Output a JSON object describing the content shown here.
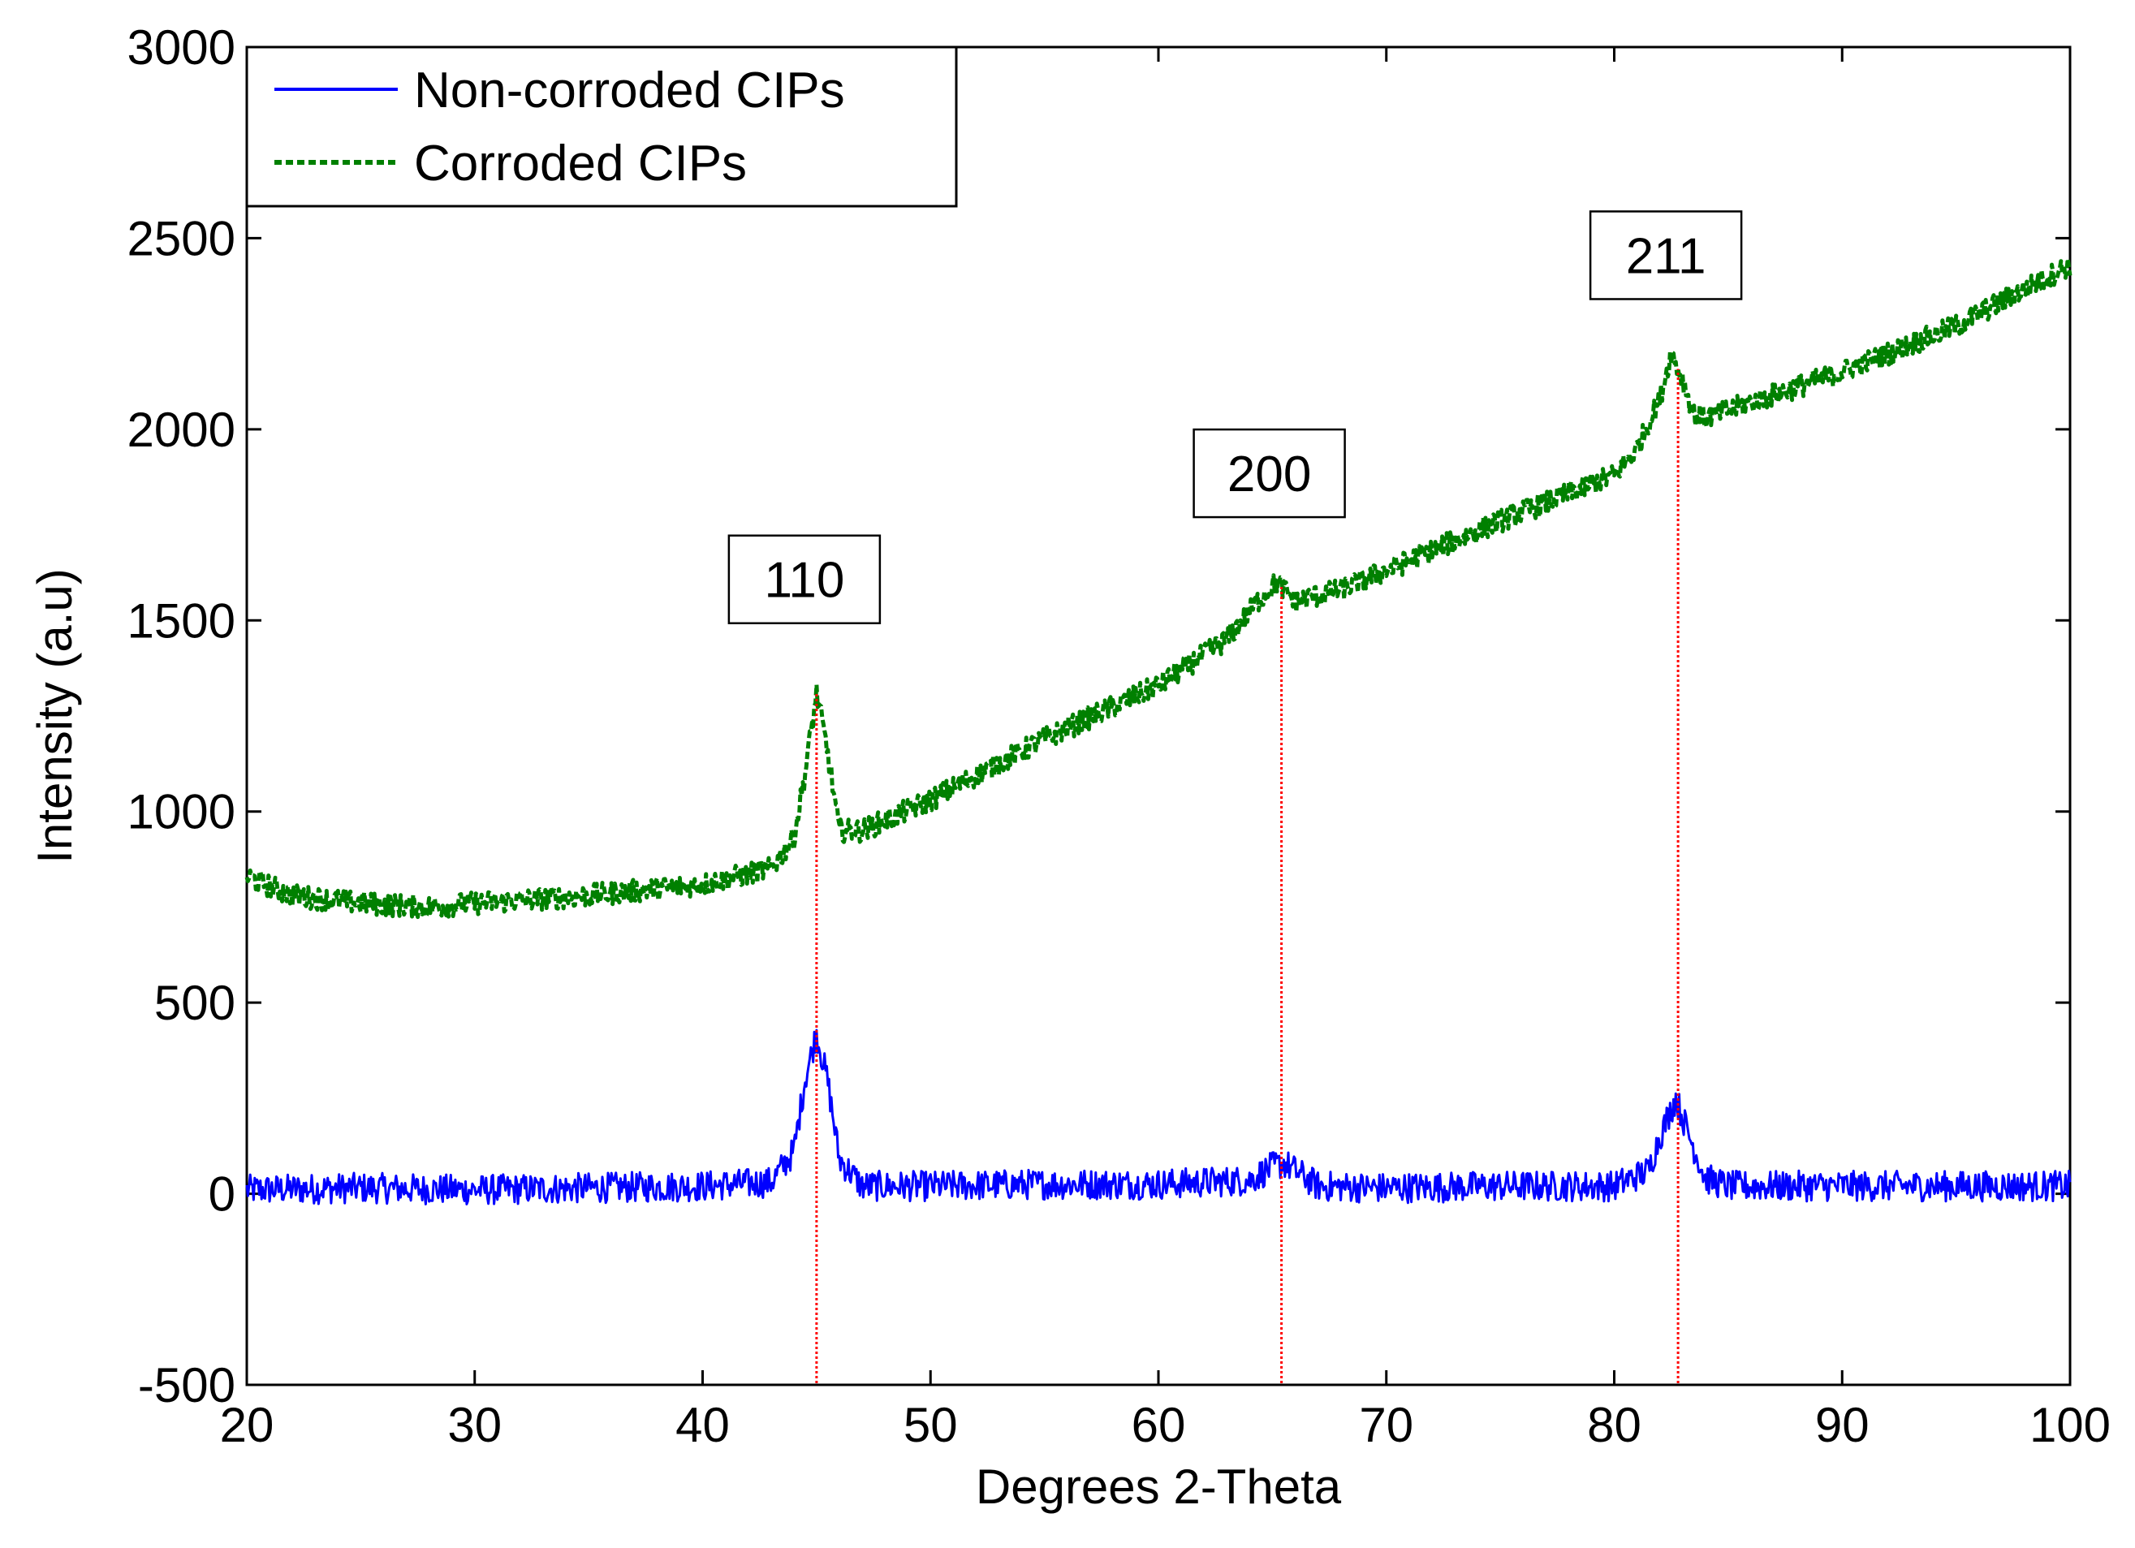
{
  "chart_data": {
    "type": "line",
    "title": "",
    "xlabel": "Degrees 2-Theta",
    "ylabel": "Intensity (a.u)",
    "xlim": [
      20,
      100
    ],
    "ylim": [
      -500,
      3000
    ],
    "xticks": [
      20,
      30,
      40,
      50,
      60,
      70,
      80,
      90,
      100
    ],
    "yticks": [
      -500,
      0,
      500,
      1000,
      1500,
      2000,
      2500,
      3000
    ],
    "xtick_labels": [
      "20",
      "30",
      "40",
      "50",
      "60",
      "70",
      "80",
      "90",
      "100"
    ],
    "ytick_labels": [
      "-500",
      "0",
      "500",
      "1000",
      "1500",
      "2000",
      "2500",
      "3000"
    ],
    "grid": false,
    "legend_position": "top-left",
    "series": [
      {
        "name": "Non-corroded CIPs",
        "color": "#0000ff",
        "style": "solid",
        "x": [
          20,
          25,
          30,
          35,
          40,
          43,
          44,
          44.5,
          45,
          45.5,
          46,
          47,
          50,
          55,
          60,
          64,
          65,
          65.5,
          66,
          67,
          70,
          75,
          80,
          81.5,
          82,
          82.7,
          83.3,
          84,
          85,
          90,
          95,
          100
        ],
        "y": [
          10,
          15,
          10,
          15,
          20,
          30,
          110,
          300,
          420,
          290,
          90,
          20,
          20,
          25,
          25,
          35,
          70,
          80,
          60,
          20,
          15,
          20,
          20,
          60,
          150,
          250,
          150,
          40,
          20,
          20,
          20,
          20
        ],
        "noise_amplitude": 40
      },
      {
        "name": "Corroded CIPs",
        "color": "#008000",
        "style": "dashed",
        "x": [
          20,
          22,
          25,
          28,
          30,
          35,
          40,
          43,
          44,
          44.5,
          45,
          45.5,
          46,
          47,
          50,
          55,
          60,
          63,
          64.5,
          65.2,
          66,
          68,
          70,
          75,
          80,
          81,
          82,
          82.5,
          83,
          83.5,
          84,
          86,
          90,
          95,
          100
        ],
        "y": [
          830,
          780,
          760,
          750,
          760,
          780,
          810,
          850,
          930,
          1100,
          1310,
          1150,
          950,
          950,
          1030,
          1190,
          1330,
          1450,
          1560,
          1600,
          1550,
          1580,
          1630,
          1760,
          1880,
          1950,
          2080,
          2200,
          2130,
          2040,
          2030,
          2070,
          2150,
          2270,
          2430
        ],
        "noise_amplitude": 30
      }
    ],
    "peak_markers": [
      {
        "label": "110",
        "x": 45.0,
        "color": "#ff0000"
      },
      {
        "label": "200",
        "x": 65.4,
        "color": "#ff0000"
      },
      {
        "label": "211",
        "x": 82.8,
        "color": "#ff0000"
      }
    ]
  }
}
